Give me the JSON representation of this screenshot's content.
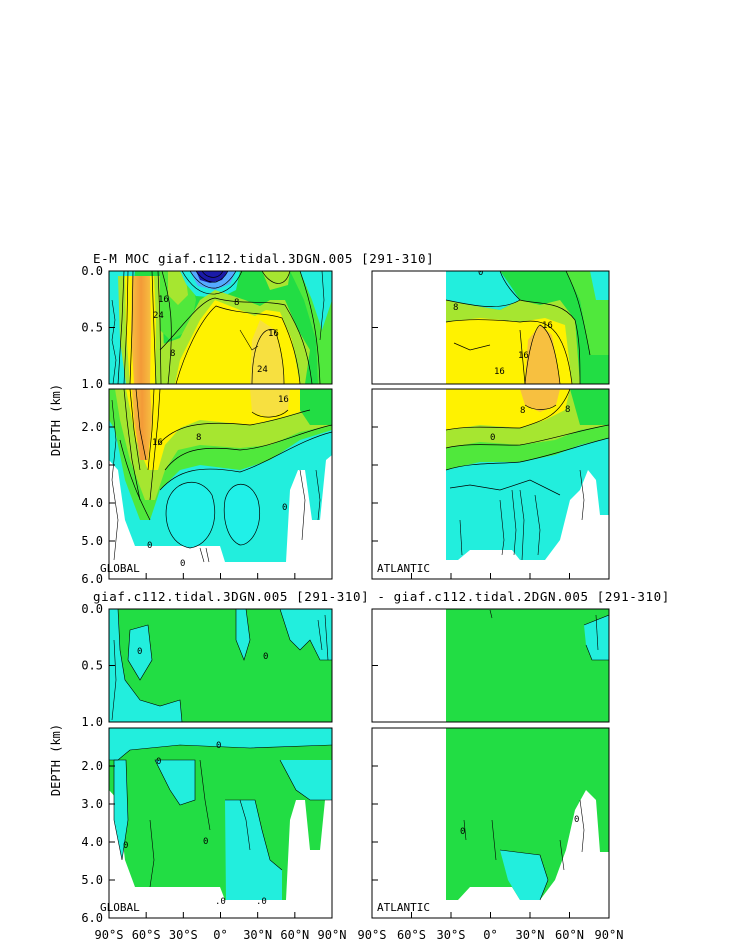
{
  "chart_data": [
    {
      "type": "contour",
      "title": "E-M MOC  giaf.c112.tidal.3DGN.005 [291-310]",
      "ylabel": "DEPTH (km)",
      "panels": [
        "GLOBAL",
        "ATLANTIC"
      ],
      "x_ticks": [
        "90°S",
        "60°S",
        "30°S",
        "0°",
        "30°N",
        "60°N",
        "90°N"
      ],
      "x_range": [
        -90,
        90
      ],
      "upper_y_range": [
        0.0,
        1.0
      ],
      "lower_y_range": [
        1.0,
        6.0
      ],
      "upper_y_ticks": [
        "0.0",
        "0.5",
        "1.0"
      ],
      "lower_y_ticks": [
        "2.0",
        "3.0",
        "4.0",
        "5.0",
        "6.0"
      ],
      "contour_labels_global": [
        "24",
        "16",
        "8",
        "8",
        "16",
        "24",
        "16",
        "16",
        "8",
        "0",
        "0",
        "0"
      ],
      "contour_labels_atlantic": [
        "0",
        "8",
        "16",
        "16",
        "16",
        "8",
        "8",
        "0"
      ]
    },
    {
      "type": "contour",
      "title": "giaf.c112.tidal.3DGN.005 [291-310] - giaf.c112.tidal.2DGN.005 [291-310]",
      "ylabel": "DEPTH (km)",
      "panels": [
        "GLOBAL",
        "ATLANTIC"
      ],
      "x_ticks": [
        "90°S",
        "60°S",
        "30°S",
        "0°",
        "30°N",
        "60°N",
        "90°N"
      ],
      "x_range": [
        -90,
        90
      ],
      "upper_y_range": [
        0.0,
        1.0
      ],
      "lower_y_range": [
        1.0,
        6.0
      ],
      "upper_y_ticks": [
        "0.0",
        "0.5",
        "1.0"
      ],
      "lower_y_ticks": [
        "2.0",
        "3.0",
        "4.0",
        "5.0",
        "6.0"
      ],
      "contour_labels_global": [
        "0",
        "0",
        "0",
        "0",
        "0",
        "0",
        ".0",
        ".0"
      ],
      "contour_labels_atlantic": [
        "0",
        "0"
      ]
    }
  ],
  "colors": {
    "orange": "#f4a640",
    "yellow": "#fff200",
    "light_yellow": "#f2f060",
    "green": "#22dd44",
    "yellow_green": "#a6e630",
    "lime": "#50e83c",
    "cyan": "#22eedd",
    "aqua_green": "#22f0a0",
    "blue": "#1a1aa8",
    "lightblue": "#55aaff"
  }
}
